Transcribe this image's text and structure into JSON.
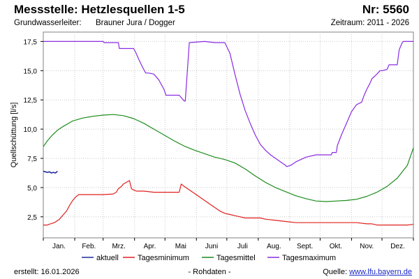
{
  "header": {
    "station": "Messstelle: Hetzlesquellen 1-5",
    "number": "Nr: 5560",
    "aquifer_label": "Grundwasserleiter:",
    "aquifer_value": "Brauner Jura / Dogger",
    "period": "Zeitraum: 2011 - 2026"
  },
  "footer": {
    "created": "erstellt:  16.01.2026",
    "raw": "- Rohdaten -",
    "source_label": "Quelle: ",
    "source_link": "www.lfu.bayern.de"
  },
  "chart_data": {
    "type": "line",
    "ylabel": "Quellschüttung [l/s]",
    "xlabel": "",
    "x_unit": "day of year",
    "xlim": [
      1,
      366
    ],
    "ylim": [
      0.7,
      18.3
    ],
    "yticks": [
      2.5,
      5.0,
      7.5,
      10.0,
      12.5,
      15.0,
      17.5
    ],
    "ytick_labels": [
      "2,5",
      "5,0",
      "7,5",
      "10,0",
      "12,5",
      "15,0",
      "17,5"
    ],
    "months": [
      "Jan.",
      "Feb.",
      "Mrz.",
      "Apr.",
      "Mai",
      "Juni",
      "Juli",
      "Aug.",
      "Sept.",
      "Okt.",
      "Nov.",
      "Dez."
    ],
    "grid": true,
    "legend_position": "bottom",
    "series": [
      {
        "name": "aktuell",
        "color": "#1e2a9c",
        "x": [
          1,
          3,
          5,
          7,
          9,
          11,
          13,
          15
        ],
        "y": [
          6.4,
          6.35,
          6.3,
          6.35,
          6.25,
          6.3,
          6.25,
          6.4
        ]
      },
      {
        "name": "Tagesminimum",
        "color": "#e0201e",
        "x": [
          1,
          5,
          8,
          12,
          17,
          21,
          24,
          27,
          30,
          33,
          36,
          38,
          40,
          42,
          45,
          50,
          60,
          70,
          73,
          75,
          78,
          80,
          84,
          86,
          88,
          90,
          93,
          95,
          100,
          110,
          120,
          130,
          133,
          135,
          137,
          140,
          145,
          150,
          155,
          160,
          165,
          170,
          175,
          180,
          185,
          190,
          200,
          210,
          215,
          220,
          230,
          240,
          250,
          260,
          270,
          280,
          290,
          300,
          305,
          310,
          320,
          325,
          330,
          340,
          350,
          360,
          366
        ],
        "y": [
          1.8,
          1.8,
          1.9,
          2.0,
          2.3,
          2.7,
          3.0,
          3.5,
          3.9,
          4.2,
          4.4,
          4.4,
          4.4,
          4.4,
          4.4,
          4.4,
          4.4,
          4.45,
          4.6,
          4.9,
          5.1,
          5.3,
          5.5,
          5.6,
          4.9,
          4.8,
          4.7,
          4.7,
          4.7,
          4.6,
          4.6,
          4.6,
          4.6,
          4.6,
          5.3,
          5.1,
          4.8,
          4.5,
          4.2,
          3.9,
          3.6,
          3.3,
          3.0,
          2.8,
          2.7,
          2.6,
          2.4,
          2.4,
          2.4,
          2.3,
          2.2,
          2.1,
          2.0,
          2.0,
          2.0,
          2.0,
          2.0,
          2.0,
          2.0,
          2.0,
          1.9,
          1.9,
          1.8,
          1.8,
          1.8,
          1.8,
          1.85
        ]
      },
      {
        "name": "Tagesmittel",
        "color": "#1c8c1c",
        "x": [
          1,
          5,
          10,
          15,
          20,
          30,
          40,
          50,
          60,
          70,
          80,
          90,
          100,
          110,
          120,
          130,
          140,
          150,
          160,
          170,
          180,
          190,
          200,
          210,
          220,
          230,
          240,
          250,
          260,
          270,
          280,
          290,
          300,
          310,
          320,
          330,
          340,
          350,
          360,
          366
        ],
        "y": [
          8.5,
          9.0,
          9.5,
          9.9,
          10.2,
          10.7,
          10.95,
          11.1,
          11.2,
          11.25,
          11.15,
          10.9,
          10.5,
          10.0,
          9.5,
          9.0,
          8.55,
          8.2,
          7.9,
          7.6,
          7.4,
          7.1,
          6.6,
          6.0,
          5.45,
          5.0,
          4.65,
          4.3,
          4.05,
          3.85,
          3.8,
          3.85,
          3.9,
          4.0,
          4.25,
          4.6,
          5.1,
          5.8,
          6.9,
          8.4
        ]
      },
      {
        "name": "Tagesmaximum",
        "color": "#8a2be2",
        "x": [
          1,
          20,
          45,
          60,
          61,
          75,
          76,
          90,
          92,
          95,
          100,
          102,
          105,
          110,
          115,
          120,
          122,
          125,
          130,
          135,
          138,
          140,
          141,
          145,
          160,
          170,
          175,
          180,
          185,
          190,
          195,
          200,
          205,
          210,
          215,
          220,
          225,
          230,
          235,
          240,
          241,
          245,
          250,
          260,
          270,
          285,
          286,
          290,
          291,
          295,
          300,
          305,
          310,
          315,
          317,
          320,
          323,
          325,
          330,
          333,
          335,
          340,
          342,
          345,
          350,
          352,
          355,
          356,
          360,
          366
        ],
        "y": [
          17.5,
          17.5,
          17.5,
          17.5,
          17.4,
          17.4,
          16.9,
          16.9,
          16.6,
          16.0,
          15.1,
          14.8,
          14.8,
          14.7,
          14.2,
          13.4,
          12.9,
          12.9,
          12.9,
          12.9,
          12.6,
          12.4,
          12.4,
          17.4,
          17.5,
          17.4,
          17.4,
          17.4,
          16.5,
          14.7,
          13.0,
          11.6,
          10.5,
          9.5,
          8.7,
          8.2,
          7.8,
          7.5,
          7.2,
          6.9,
          6.8,
          6.9,
          7.2,
          7.6,
          7.8,
          7.8,
          8.0,
          8.0,
          8.6,
          9.5,
          10.5,
          11.5,
          12.1,
          12.3,
          12.8,
          13.4,
          13.9,
          14.3,
          14.7,
          15.0,
          15.0,
          15.1,
          15.5,
          15.5,
          15.5,
          16.8,
          17.4,
          17.5,
          17.5,
          17.5
        ]
      }
    ]
  }
}
